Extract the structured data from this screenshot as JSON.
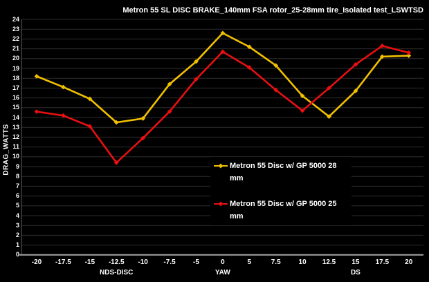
{
  "title": "Metron 55 SL DISC BRAKE_140mm FSA rotor_25-28mm tire_Isolated test_LSWTSD",
  "y_axis": {
    "label": "DRAG_WATTS",
    "min": 0,
    "max": 24,
    "step": 1
  },
  "x_axis": {
    "ticks": [
      "-20",
      "-17.5",
      "-15",
      "-12.5",
      "-10",
      "-7.5",
      "-5",
      "0",
      "5",
      "7.5",
      "10",
      "12.5",
      "15",
      "17.5",
      "20"
    ],
    "group_labels": [
      {
        "text": "NDS-DISC",
        "tick_index": 3
      },
      {
        "text": "YAW",
        "tick_index": 7
      },
      {
        "text": "DS",
        "tick_index": 12
      }
    ]
  },
  "legend": {
    "items": [
      {
        "label": "Metron 55 Disc w/ GP 5000 28 mm",
        "color": "#F0C000"
      },
      {
        "label": "Metron 55 Disc w/ GP 5000 25 mm",
        "color": "#E81010"
      }
    ]
  },
  "chart_data": {
    "type": "line",
    "title": "Metron 55 SL DISC BRAKE_140mm FSA rotor_25-28mm tire_Isolated test_LSWTSD",
    "xlabel": "YAW",
    "ylabel": "DRAG_WATTS",
    "ylim": [
      0,
      24
    ],
    "grid": true,
    "legend_position": "inside-center-right",
    "categories": [
      -20,
      -17.5,
      -15,
      -12.5,
      -10,
      -7.5,
      -5,
      0,
      5,
      7.5,
      10,
      12.5,
      15,
      17.5,
      20
    ],
    "series": [
      {
        "name": "Metron 55 Disc w/ GP 5000 28 mm",
        "color": "#F0C000",
        "values": [
          18.2,
          17.1,
          15.9,
          13.5,
          13.9,
          17.4,
          19.7,
          22.6,
          21.2,
          19.3,
          16.2,
          14.1,
          16.7,
          20.2,
          20.3
        ]
      },
      {
        "name": "Metron 55 Disc w/ GP 5000 25 mm",
        "color": "#E81010",
        "values": [
          14.6,
          14.2,
          13.1,
          9.4,
          11.9,
          14.6,
          17.9,
          20.7,
          19.1,
          16.8,
          14.7,
          17.0,
          19.4,
          21.3,
          20.6
        ]
      }
    ]
  },
  "colors": {
    "background": "#000000",
    "gridline": "#2E2E2E",
    "axis_line": "#A6A6A6",
    "plot_border": "#606060",
    "text": "#FFFFFF"
  }
}
